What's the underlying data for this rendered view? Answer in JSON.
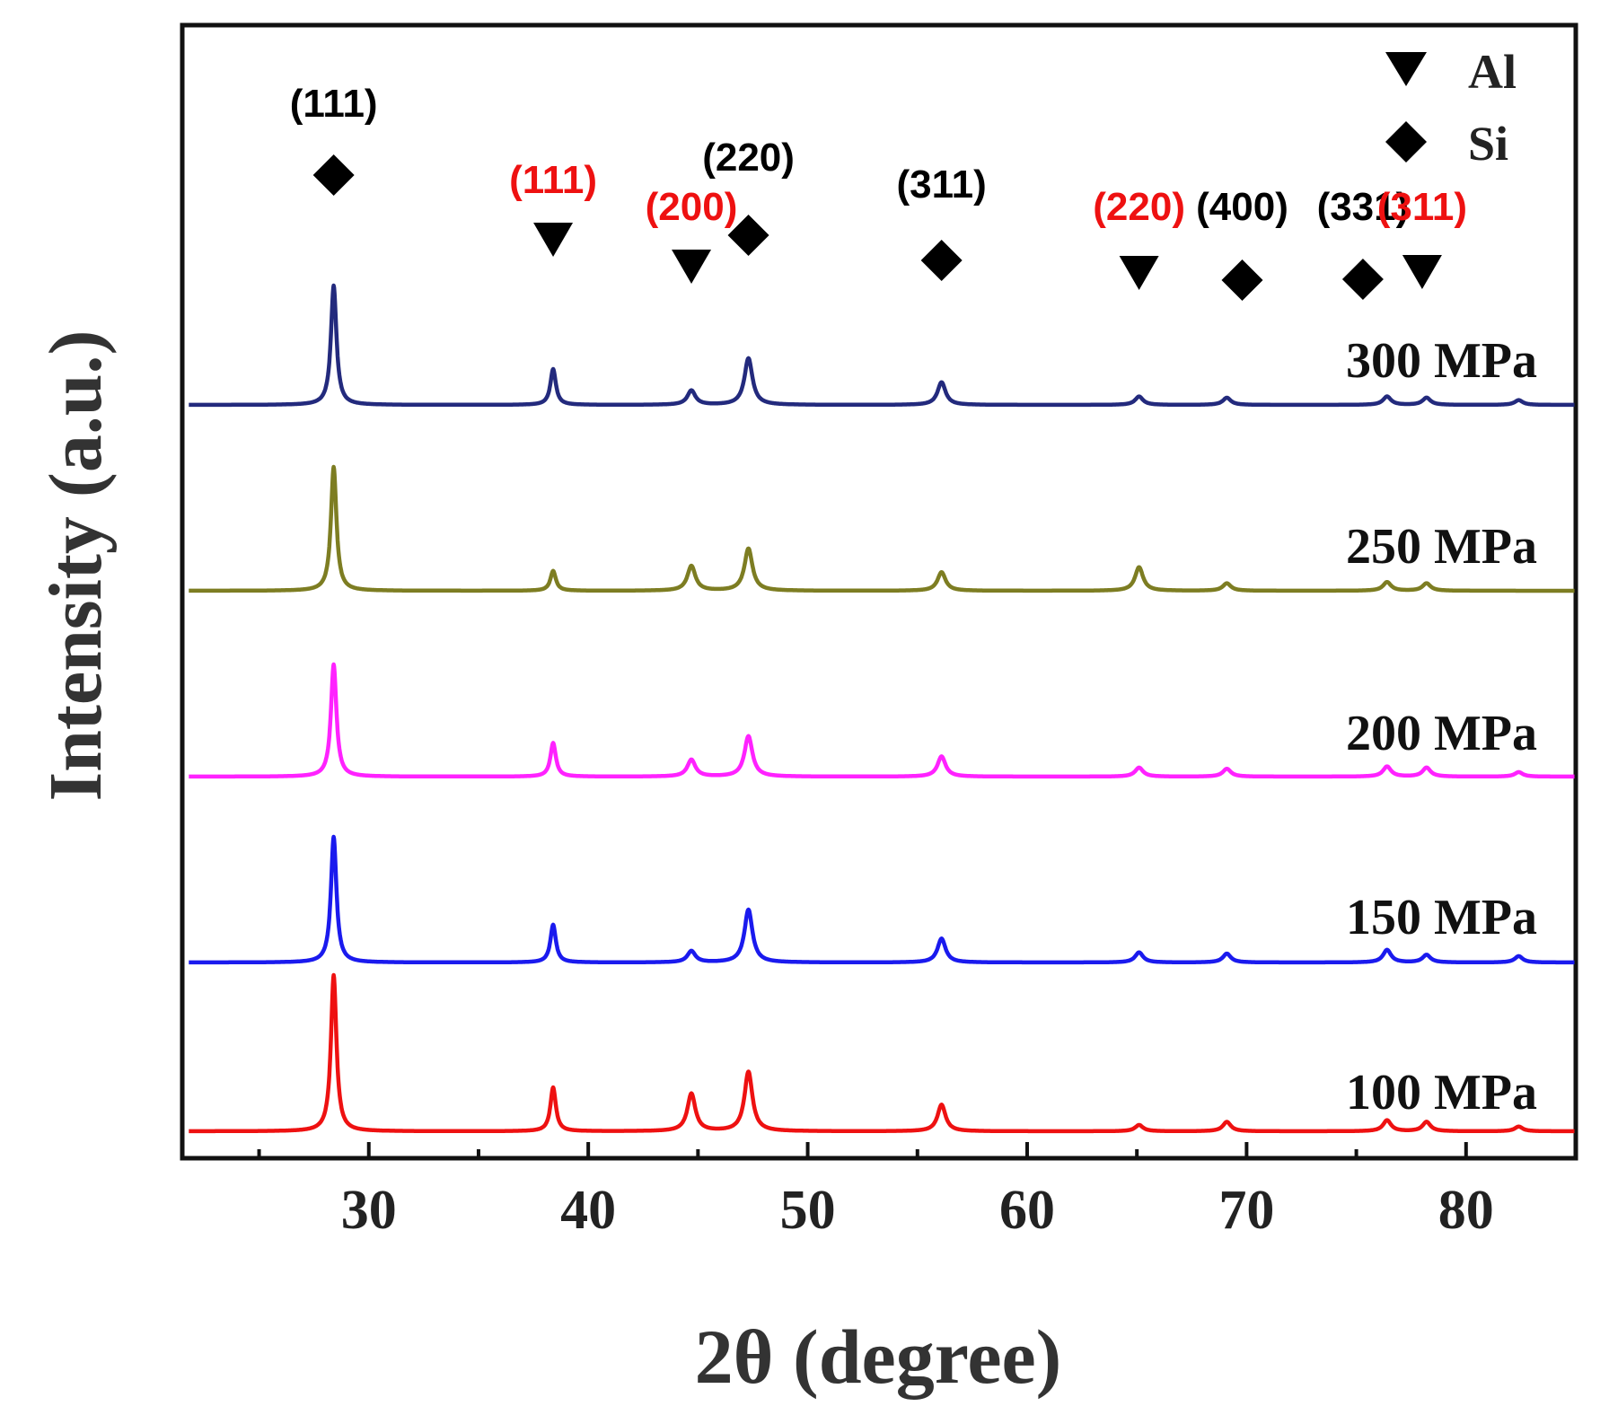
{
  "chart_data": {
    "type": "line",
    "xlabel": "2θ (degree)",
    "ylabel": "Intensity (a.u.)",
    "xlim": [
      21.5,
      85
    ],
    "xticks": [
      30,
      40,
      50,
      60,
      70,
      80
    ],
    "xtick_labels": [
      "30",
      "40",
      "50",
      "60",
      "70",
      "80"
    ],
    "minor_ticks": [
      25,
      35,
      45,
      55,
      65,
      75
    ],
    "legend": [
      {
        "symbol": "triangle-down",
        "label": "Al"
      },
      {
        "symbol": "diamond",
        "label": "Si"
      }
    ],
    "series": [
      {
        "name": "300 MPa",
        "label": "300 MPa",
        "color": "#232a7d",
        "peaks": [
          [
            28.4,
            1.0
          ],
          [
            38.4,
            0.3
          ],
          [
            44.7,
            0.12
          ],
          [
            47.3,
            0.39
          ],
          [
            56.1,
            0.19
          ],
          [
            65.1,
            0.07
          ],
          [
            69.1,
            0.06
          ],
          [
            76.4,
            0.07
          ],
          [
            78.2,
            0.06
          ],
          [
            82.4,
            0.04
          ]
        ]
      },
      {
        "name": "250 MPa",
        "label": "250 MPa",
        "color": "#7d7d22",
        "peaks": [
          [
            28.4,
            1.0
          ],
          [
            38.4,
            0.16
          ],
          [
            44.7,
            0.2
          ],
          [
            47.3,
            0.34
          ],
          [
            56.1,
            0.15
          ],
          [
            65.1,
            0.19
          ],
          [
            69.1,
            0.06
          ],
          [
            76.4,
            0.07
          ],
          [
            78.2,
            0.06
          ]
        ]
      },
      {
        "name": "200 MPa",
        "label": "200 MPa",
        "color": "#ff22ff",
        "peaks": [
          [
            28.4,
            1.0
          ],
          [
            38.4,
            0.3
          ],
          [
            44.7,
            0.15
          ],
          [
            47.3,
            0.36
          ],
          [
            56.1,
            0.18
          ],
          [
            65.1,
            0.08
          ],
          [
            69.1,
            0.07
          ],
          [
            76.4,
            0.09
          ],
          [
            78.2,
            0.08
          ],
          [
            82.4,
            0.04
          ]
        ]
      },
      {
        "name": "150 MPa",
        "label": "150 MPa",
        "color": "#1a1aee",
        "peaks": [
          [
            28.4,
            1.0
          ],
          [
            38.4,
            0.3
          ],
          [
            44.7,
            0.09
          ],
          [
            47.3,
            0.42
          ],
          [
            56.1,
            0.19
          ],
          [
            65.1,
            0.08
          ],
          [
            69.1,
            0.07
          ],
          [
            76.4,
            0.1
          ],
          [
            78.2,
            0.06
          ],
          [
            82.4,
            0.05
          ]
        ]
      },
      {
        "name": "100 MPa",
        "label": "100 MPa",
        "color": "#ee1111",
        "peaks": [
          [
            28.4,
            1.0
          ],
          [
            38.4,
            0.28
          ],
          [
            44.7,
            0.24
          ],
          [
            47.3,
            0.38
          ],
          [
            56.1,
            0.17
          ],
          [
            65.1,
            0.04
          ],
          [
            69.1,
            0.06
          ],
          [
            76.4,
            0.07
          ],
          [
            78.2,
            0.06
          ],
          [
            82.4,
            0.03
          ]
        ]
      }
    ],
    "peak_annotations": [
      {
        "label": "(111)",
        "phase": "Si",
        "x": 28.4,
        "color": "#000000"
      },
      {
        "label": "(111)",
        "phase": "Al",
        "x": 38.4,
        "color": "#ee1111"
      },
      {
        "label": "(200)",
        "phase": "Al",
        "x": 44.7,
        "color": "#ee1111"
      },
      {
        "label": "(220)",
        "phase": "Si",
        "x": 47.3,
        "color": "#000000"
      },
      {
        "label": "(311)",
        "phase": "Si",
        "x": 56.1,
        "color": "#000000"
      },
      {
        "label": "(220)",
        "phase": "Al",
        "x": 65.1,
        "color": "#ee1111"
      },
      {
        "label": "(400)",
        "phase": "Si",
        "x": 69.8,
        "color": "#000000"
      },
      {
        "label": "(331)",
        "phase": "Si",
        "x": 75.3,
        "color": "#000000"
      },
      {
        "label": "(311)",
        "phase": "Al",
        "x": 78.0,
        "color": "#ee1111"
      }
    ]
  }
}
